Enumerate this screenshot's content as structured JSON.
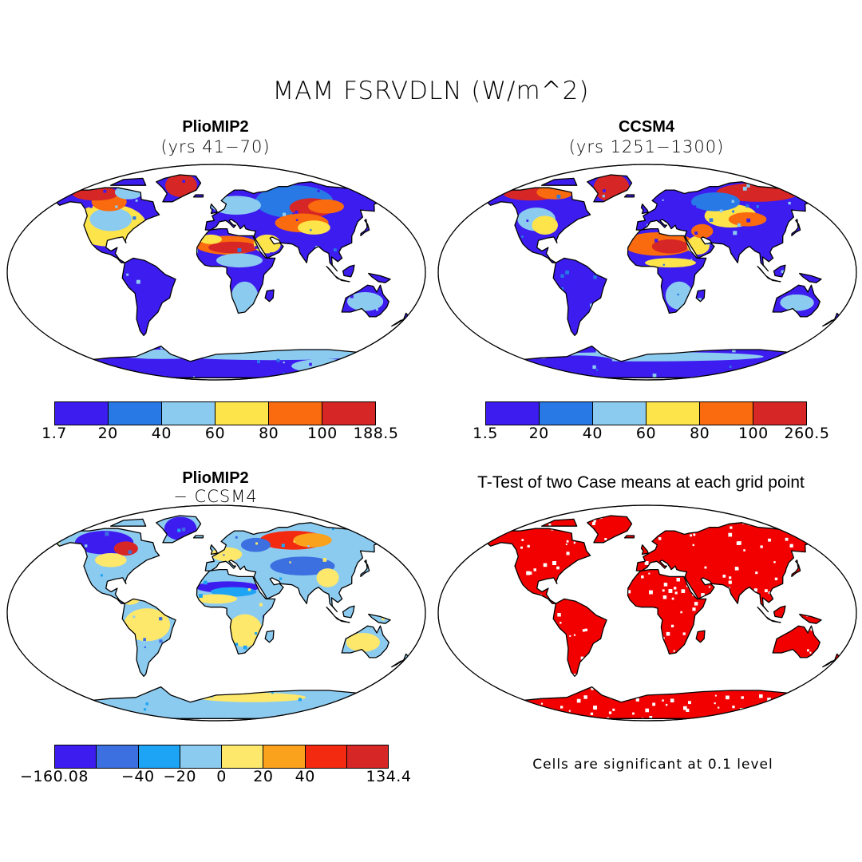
{
  "title": "MAM FSRVDLN (W/m^2)",
  "panels": [
    {
      "title": "PlioMIP2",
      "subtitle": "(yrs 41−70)"
    },
    {
      "title": "CCSM4",
      "subtitle": "(yrs 1251−1300)"
    },
    {
      "title": "PlioMIP2",
      "subtitle": "− CCSM4"
    },
    {
      "title": "T-Test of two Case means at each grid point",
      "subtitle": ""
    }
  ],
  "colorbars": [
    {
      "labels": [
        "1.7",
        "20",
        "40",
        "60",
        "80",
        "100",
        "188.5"
      ],
      "colors": [
        "#3d1cf0",
        "#2878e6",
        "#8ccbf0",
        "#fde44a",
        "#f96b0e",
        "#d72626"
      ]
    },
    {
      "labels": [
        "1.5",
        "20",
        "40",
        "60",
        "80",
        "100",
        "260.5"
      ],
      "colors": [
        "#3d1cf0",
        "#2878e6",
        "#8ccbf0",
        "#fde44a",
        "#f96b0e",
        "#d72626"
      ]
    },
    {
      "labels": [
        "−160.08",
        "−40",
        "−20",
        "0",
        "20",
        "40",
        "134.4"
      ],
      "colors": [
        "#3d1cf0",
        "#3c6fe0",
        "#1ea4f5",
        "#8ccbf0",
        "#fde86b",
        "#fba21d",
        "#f32a0f",
        "#d72626"
      ]
    }
  ],
  "note": "Cells are significant at 0.1 level",
  "colors": {
    "ttest_fill": "#f20000",
    "diff_base": "#8ccbf0"
  }
}
